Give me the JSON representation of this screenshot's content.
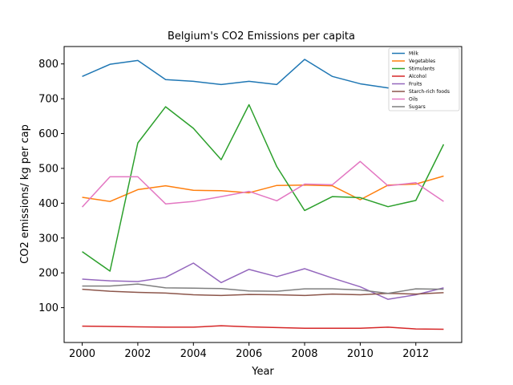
{
  "chart_data": {
    "type": "line",
    "title": "Belgium's CO2 Emissions per capita",
    "xlabel": "Year",
    "ylabel": "CO2 emissions/ kg per cap",
    "x": [
      2000,
      2001,
      2002,
      2003,
      2004,
      2005,
      2006,
      2007,
      2008,
      2009,
      2010,
      2011,
      2012,
      2013
    ],
    "xlim": [
      1999.35,
      2013.65
    ],
    "ylim": [
      0,
      850
    ],
    "xticks": [
      2000,
      2002,
      2004,
      2006,
      2008,
      2010,
      2012
    ],
    "yticks": [
      100,
      200,
      300,
      400,
      500,
      600,
      700,
      800
    ],
    "grid": false,
    "legend_position": "top-right",
    "series": [
      {
        "name": "Milk",
        "color": "#1f77b4",
        "values": [
          764,
          799,
          810,
          755,
          750,
          741,
          750,
          741,
          813,
          764,
          743,
          731,
          740,
          756
        ]
      },
      {
        "name": "Vegetables",
        "color": "#ff7f0e",
        "values": [
          417,
          405,
          439,
          450,
          437,
          436,
          430,
          451,
          452,
          450,
          410,
          452,
          455,
          478
        ]
      },
      {
        "name": "Stimulants",
        "color": "#2ca02c",
        "values": [
          261,
          205,
          573,
          677,
          615,
          525,
          683,
          505,
          379,
          419,
          416,
          390,
          408,
          569
        ]
      },
      {
        "name": "Alcohol",
        "color": "#d62728",
        "values": [
          47,
          46,
          45,
          44,
          44,
          48,
          45,
          43,
          41,
          41,
          41,
          44,
          39,
          38
        ]
      },
      {
        "name": "Fruits",
        "color": "#9467bd",
        "values": [
          182,
          177,
          175,
          187,
          228,
          172,
          210,
          189,
          212,
          185,
          160,
          124,
          137,
          157
        ]
      },
      {
        "name": "Starch-rich foods",
        "color": "#8c564b",
        "values": [
          153,
          147,
          144,
          142,
          137,
          135,
          138,
          137,
          135,
          139,
          137,
          141,
          139,
          143
        ]
      },
      {
        "name": "Oils",
        "color": "#e377c2",
        "values": [
          389,
          476,
          476,
          398,
          405,
          419,
          434,
          407,
          455,
          453,
          520,
          450,
          459,
          405
        ]
      },
      {
        "name": "Sugars",
        "color": "#7f7f7f",
        "values": [
          162,
          162,
          168,
          157,
          156,
          155,
          148,
          147,
          154,
          154,
          151,
          141,
          154,
          153
        ]
      }
    ]
  }
}
